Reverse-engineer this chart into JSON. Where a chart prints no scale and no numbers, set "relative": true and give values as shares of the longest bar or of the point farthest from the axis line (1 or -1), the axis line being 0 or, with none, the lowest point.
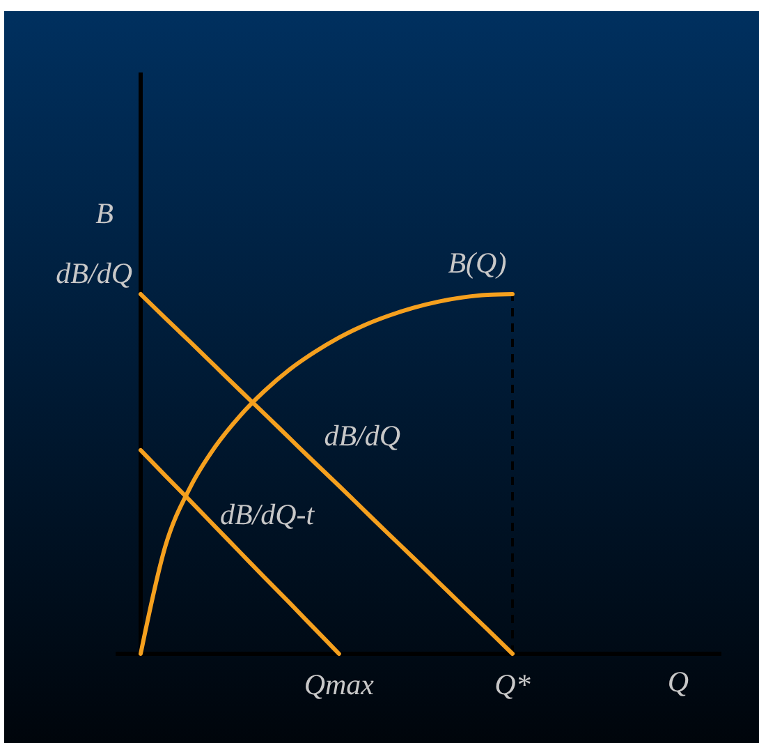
{
  "chart_data": {
    "type": "line",
    "relative": true,
    "xlabel": "Q",
    "ylabel": "B",
    "categories": [
      null,
      null,
      null,
      null,
      null,
      null,
      null,
      null,
      "Qmax",
      null,
      null,
      null,
      null,
      null,
      null,
      "Q*",
      null,
      null,
      null,
      null,
      null,
      null,
      null,
      null
    ],
    "series": [
      {
        "name": "B(Q)",
        "color": "#f5a01e",
        "values": [
          0,
          0.3,
          0.463,
          0.575,
          0.661,
          0.731,
          0.79,
          0.838,
          0.879,
          0.913,
          0.94,
          0.962,
          0.979,
          0.991,
          0.998,
          1,
          null,
          null,
          null,
          null,
          null,
          null,
          null,
          null
        ]
      },
      {
        "name": "dB/dQ",
        "color": "#f5a01e",
        "values": [
          1,
          0.933,
          0.867,
          0.8,
          0.733,
          0.667,
          0.6,
          0.533,
          0.467,
          0.4,
          0.333,
          0.267,
          0.2,
          0.133,
          0.067,
          0,
          null,
          null,
          null,
          null,
          null,
          null,
          null,
          null
        ]
      },
      {
        "name": "dB/dQ-t",
        "color": "#f5a01e",
        "values": [
          0.566,
          0.495,
          0.425,
          0.354,
          0.283,
          0.212,
          0.142,
          0.071,
          0,
          null,
          null,
          null,
          null,
          null,
          null,
          null,
          null,
          null,
          null,
          null,
          null,
          null,
          null,
          null
        ]
      }
    ],
    "ref_lines": [
      {
        "axis": "x",
        "value": "Q*",
        "color": "#000000",
        "line_style": "dashed"
      }
    ],
    "annotations": [
      "dB/dQ"
    ],
    "marker": "none",
    "line_style": "solid"
  }
}
